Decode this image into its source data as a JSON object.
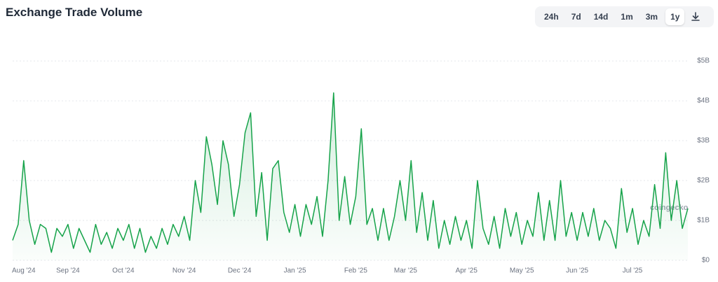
{
  "chart_data": {
    "type": "line",
    "title": "Exchange Trade Volume",
    "watermark": "coingecko",
    "range_buttons": [
      "24h",
      "7d",
      "14d",
      "1m",
      "3m",
      "1y"
    ],
    "active_range": 5,
    "color": "#16a34a",
    "grid": true,
    "categories": [
      null,
      null,
      "Aug '24",
      null,
      null,
      null,
      null,
      null,
      null,
      null,
      "Sep '24",
      null,
      null,
      null,
      null,
      null,
      null,
      null,
      null,
      null,
      "Oct '24",
      null,
      null,
      null,
      null,
      null,
      null,
      null,
      null,
      null,
      null,
      "Nov '24",
      null,
      null,
      null,
      null,
      null,
      null,
      null,
      null,
      null,
      "Dec '24",
      null,
      null,
      null,
      null,
      null,
      null,
      null,
      null,
      null,
      "Jan '25",
      null,
      null,
      null,
      null,
      null,
      null,
      null,
      null,
      null,
      null,
      "Feb '25",
      null,
      null,
      null,
      null,
      null,
      null,
      null,
      null,
      "Mar '25",
      null,
      null,
      null,
      null,
      null,
      null,
      null,
      null,
      null,
      null,
      "Apr '25",
      null,
      null,
      null,
      null,
      null,
      null,
      null,
      null,
      null,
      "May '25",
      null,
      null,
      null,
      null,
      null,
      null,
      null,
      null,
      null,
      "Jun '25",
      null,
      null,
      null,
      null,
      null,
      null,
      null,
      null,
      null,
      "Jul '25",
      null,
      null,
      null,
      null,
      null,
      null,
      null,
      null,
      null,
      null
    ],
    "values": [
      0.5,
      0.9,
      2.5,
      1.0,
      0.4,
      0.9,
      0.8,
      0.2,
      0.8,
      0.6,
      0.9,
      0.3,
      0.8,
      0.5,
      0.2,
      0.9,
      0.4,
      0.7,
      0.3,
      0.8,
      0.5,
      0.9,
      0.3,
      0.8,
      0.2,
      0.6,
      0.3,
      0.8,
      0.4,
      0.9,
      0.6,
      1.1,
      0.5,
      2.0,
      1.2,
      3.1,
      2.4,
      1.4,
      3.0,
      2.4,
      1.1,
      1.9,
      3.2,
      3.7,
      1.1,
      2.2,
      0.5,
      2.3,
      2.5,
      1.2,
      0.7,
      1.4,
      0.6,
      1.4,
      0.9,
      1.6,
      0.6,
      2.0,
      4.2,
      1.0,
      2.1,
      0.9,
      1.6,
      3.3,
      0.9,
      1.3,
      0.5,
      1.3,
      0.5,
      1.1,
      2.0,
      1.0,
      2.5,
      0.7,
      1.7,
      0.5,
      1.5,
      0.3,
      1.0,
      0.4,
      1.1,
      0.5,
      1.0,
      0.3,
      2.0,
      0.8,
      0.4,
      1.1,
      0.3,
      1.3,
      0.6,
      1.2,
      0.4,
      1.0,
      0.6,
      1.7,
      0.5,
      1.5,
      0.5,
      2.0,
      0.6,
      1.2,
      0.5,
      1.2,
      0.6,
      1.3,
      0.5,
      1.0,
      0.8,
      0.3,
      1.8,
      0.7,
      1.3,
      0.4,
      1.0,
      0.6,
      1.9,
      0.8,
      2.7,
      1.0,
      2.0,
      0.8,
      1.3
    ],
    "ylim": [
      0,
      5.3
    ],
    "yticks": [
      {
        "value": 0,
        "label": "$0"
      },
      {
        "value": 1,
        "label": "$1B"
      },
      {
        "value": 2,
        "label": "$2B"
      },
      {
        "value": 3,
        "label": "$3B"
      },
      {
        "value": 4,
        "label": "$4B"
      },
      {
        "value": 5,
        "label": "$5B"
      }
    ]
  }
}
